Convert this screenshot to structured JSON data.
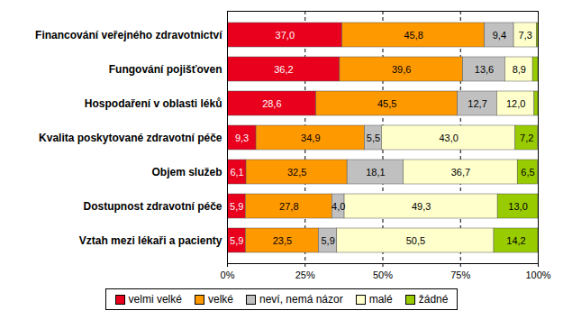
{
  "chart_data": {
    "type": "bar",
    "orientation": "horizontal",
    "stacked": true,
    "data_labels": true,
    "grid": true,
    "legend": "bottom",
    "categories": [
      "Financování veřejného zdravotnictví",
      "Fungování pojišťoven",
      "Hospodaření v oblasti léků",
      "Kvalita poskytované zdravotní péče",
      "Objem služeb",
      "Dostupnost zdravotní péče",
      "Vztah mezi lékaři a pacienty"
    ],
    "xlim": [
      0,
      100
    ],
    "xticks": [
      {
        "value": 0,
        "label": "0%"
      },
      {
        "value": 25,
        "label": "25%"
      },
      {
        "value": 50,
        "label": "50%"
      },
      {
        "value": 75,
        "label": "75%"
      },
      {
        "value": 100,
        "label": "100%"
      }
    ],
    "series": [
      {
        "name": "velmi velké",
        "color": "#e8001c",
        "values": [
          37.0,
          36.2,
          28.6,
          9.3,
          6.1,
          5.9,
          5.9
        ],
        "value_labels": [
          "37,0",
          "36,2",
          "28,6",
          "9,3",
          "6,1",
          "5,9",
          "5,9"
        ]
      },
      {
        "name": "velké",
        "color": "#ff9900",
        "values": [
          45.8,
          39.6,
          45.5,
          34.9,
          32.5,
          27.8,
          23.5
        ],
        "value_labels": [
          "45,8",
          "39,6",
          "45,5",
          "34,9",
          "32,5",
          "27,8",
          "23,5"
        ]
      },
      {
        "name": "neví, nemá názor",
        "color": "#c0c0c0",
        "values": [
          9.4,
          13.6,
          12.7,
          5.5,
          18.1,
          4.0,
          5.9
        ],
        "value_labels": [
          "9,4",
          "13,6",
          "12,7",
          "5,5",
          "18,1",
          "4,0",
          "5,9"
        ]
      },
      {
        "name": "malé",
        "color": "#ffffcc",
        "values": [
          7.3,
          8.9,
          12.0,
          43.0,
          36.7,
          49.3,
          50.5
        ],
        "value_labels": [
          "7,3",
          "8,9",
          "12,0",
          "43,0",
          "36,7",
          "49,3",
          "50,5"
        ]
      },
      {
        "name": "žádné",
        "color": "#99cc00",
        "values": [
          0.5,
          1.7,
          1.2,
          7.2,
          6.5,
          13.0,
          14.2
        ],
        "value_labels": [
          null,
          null,
          null,
          "7,2",
          "6,5",
          "13,0",
          "14,2"
        ]
      }
    ]
  }
}
